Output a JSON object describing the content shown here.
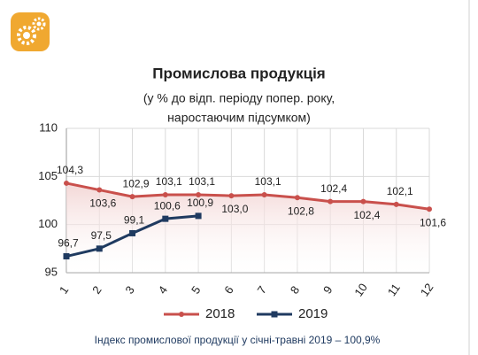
{
  "chart_data": {
    "type": "line",
    "title": "Промислова продукція",
    "subtitle": [
      "(у % до відп. періоду попер. року,",
      "наростаючим підсумком)"
    ],
    "note": "Індекс промислової продукції у січні-травні 2019 – 100,9%",
    "categories": [
      "1",
      "2",
      "3",
      "4",
      "5",
      "6",
      "7",
      "8",
      "9",
      "10",
      "11",
      "12"
    ],
    "series": [
      {
        "name": "2018",
        "color": "#c9504c",
        "values": [
          104.3,
          103.6,
          102.9,
          103.1,
          103.1,
          103.0,
          103.1,
          102.8,
          102.4,
          102.4,
          102.1,
          101.6
        ],
        "value_labels": [
          "104,3",
          "103,6",
          "102,9",
          "103,1",
          "103,1",
          "103,0",
          "103,1",
          "102,8",
          "102,4",
          "102,4",
          "102,1",
          "101,6"
        ]
      },
      {
        "name": "2019",
        "color": "#1f3a60",
        "values": [
          96.7,
          97.5,
          99.1,
          100.6,
          100.9,
          null,
          null,
          null,
          null,
          null,
          null,
          null
        ],
        "value_labels": [
          "96,7",
          "97,5",
          "99,1",
          "100,6",
          "100,9",
          null,
          null,
          null,
          null,
          null,
          null,
          null
        ]
      }
    ],
    "ylim": [
      95,
      110
    ],
    "yticks": [
      95,
      100,
      105,
      110
    ],
    "grid": true
  }
}
